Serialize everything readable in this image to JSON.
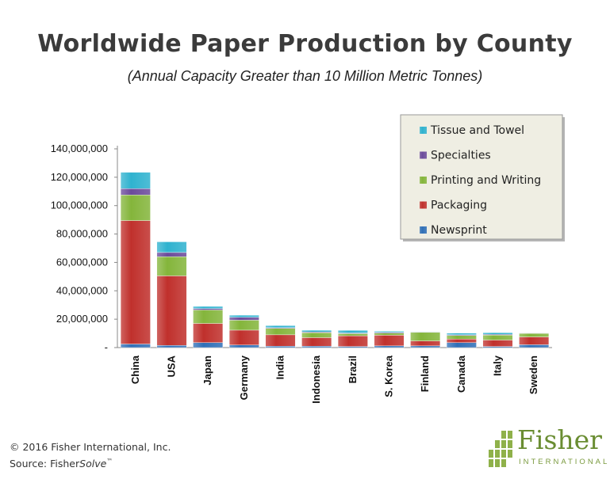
{
  "chart_data": {
    "type": "bar",
    "stacked": true,
    "title": "Worldwide Paper Production by County",
    "subtitle": "(Annual Capacity Greater than 10 Million Metric Tonnes)",
    "categories": [
      "China",
      "USA",
      "Japan",
      "Germany",
      "India",
      "Indonesia",
      "Brazil",
      "S. Korea",
      "Finland",
      "Canada",
      "Italy",
      "Sweden"
    ],
    "series": [
      {
        "name": "Newsprint",
        "color": "#2f6fb7",
        "values": [
          2500000,
          1500000,
          3500000,
          1800000,
          1000000,
          1000000,
          800000,
          1200000,
          1200000,
          3500000,
          800000,
          2000000
        ]
      },
      {
        "name": "Packaging",
        "color": "#c0302c",
        "values": [
          87000000,
          49000000,
          13500000,
          10500000,
          8000000,
          6000000,
          7500000,
          7500000,
          3500000,
          2500000,
          4500000,
          5500000
        ]
      },
      {
        "name": "Printing and Writing",
        "color": "#84b53b",
        "values": [
          18000000,
          13500000,
          9500000,
          7000000,
          4500000,
          3500000,
          1500000,
          1500000,
          6000000,
          2500000,
          3500000,
          2500000
        ]
      },
      {
        "name": "Specialties",
        "color": "#6b4a9b",
        "values": [
          4500000,
          3000000,
          1000000,
          2000000,
          500000,
          500000,
          500000,
          500000,
          300000,
          500000,
          500000,
          300000
        ]
      },
      {
        "name": "Tissue and Towel",
        "color": "#2fb2cf",
        "values": [
          11500000,
          7500000,
          1500000,
          1500000,
          1500000,
          1200000,
          1800000,
          800000,
          300000,
          1200000,
          1200000,
          200000
        ]
      }
    ],
    "ylim": [
      0,
      140000000
    ],
    "yticks": [
      0,
      20000000,
      40000000,
      60000000,
      80000000,
      100000000,
      120000000,
      140000000
    ],
    "ytick_labels": [
      "-",
      "20,000,000",
      "40,000,000",
      "60,000,000",
      "80,000,000",
      "100,000,000",
      "120,000,000",
      "140,000,000"
    ],
    "legend_position": "top-right",
    "legend_order": [
      "Tissue and Towel",
      "Specialties",
      "Printing and Writing",
      "Packaging",
      "Newsprint"
    ],
    "grid": false
  },
  "footer": {
    "copyright": "© 2016 Fisher International, Inc.",
    "source_prefix": "Source: Fisher",
    "source_italic": "Solve",
    "source_tm": "™"
  },
  "logo": {
    "name": "Fisher",
    "sub": "INTERNATIONAL",
    "color": "#6a8d32"
  }
}
